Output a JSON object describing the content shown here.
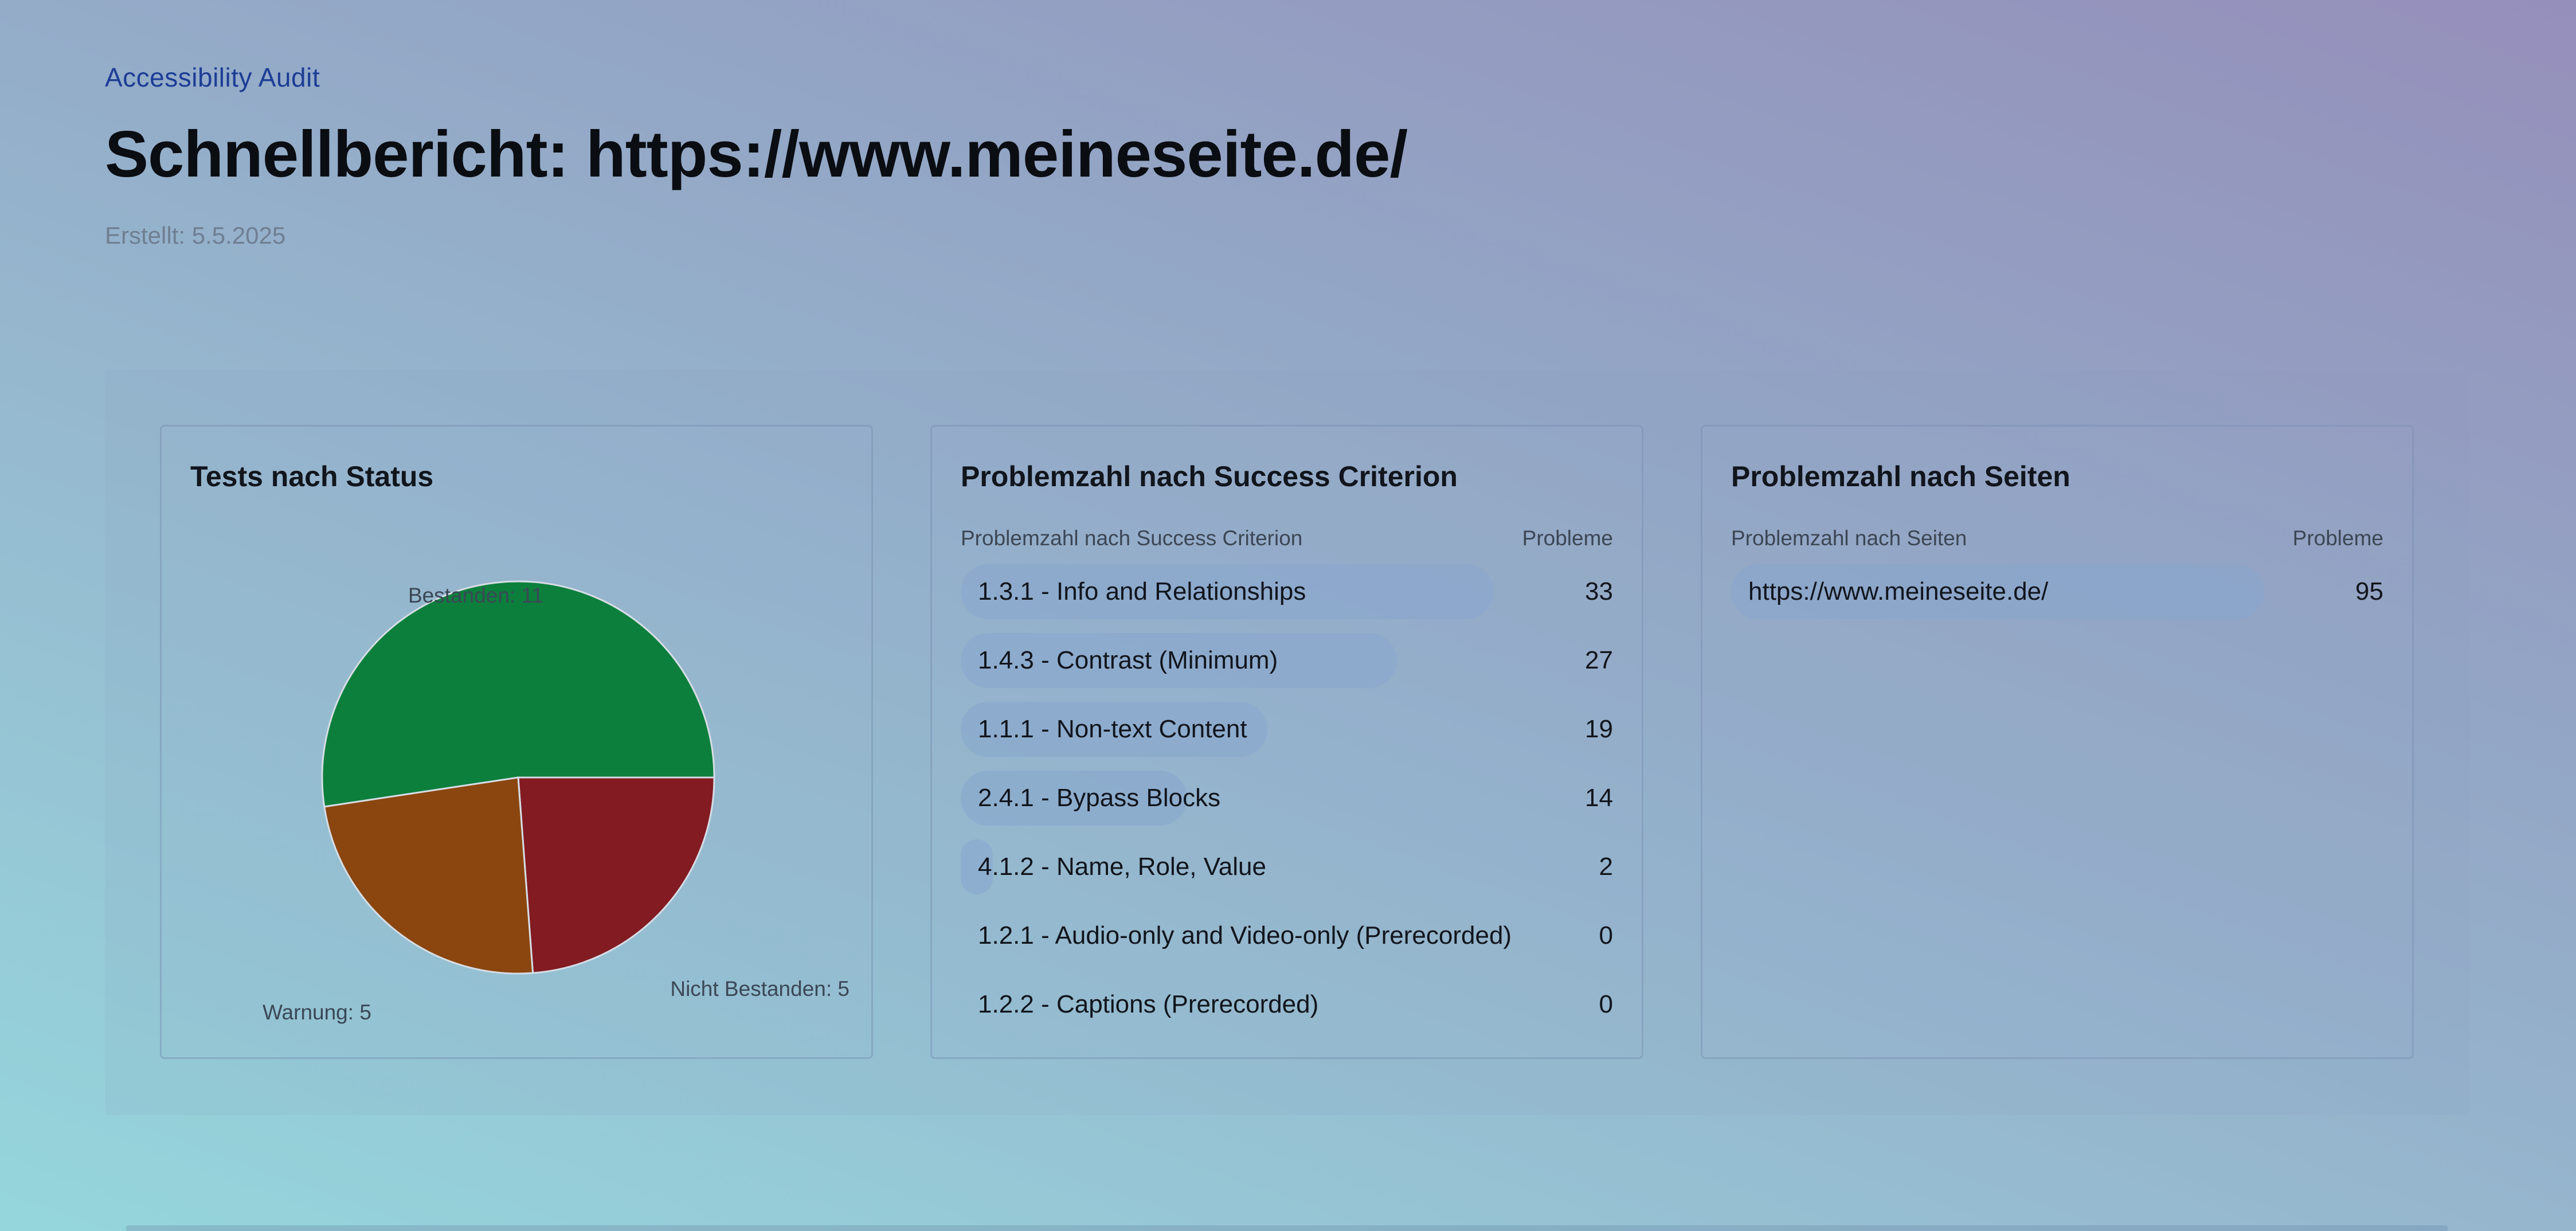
{
  "header": {
    "eyebrow": "Accessibility Audit",
    "title": "Schnellbericht: https://www.meineseite.de/",
    "created": "Erstellt: 5.5.2025"
  },
  "status_card": {
    "title": "Tests nach Status"
  },
  "chart_data": {
    "type": "pie",
    "slices": [
      {
        "label": "Bestanden: 11",
        "name": "Bestanden",
        "value": 11,
        "color": "#0c7f3c"
      },
      {
        "label": "Nicht Bestanden: 5",
        "name": "Nicht Bestanden",
        "value": 5,
        "color": "#831b22"
      },
      {
        "label": "Warnung: 5",
        "name": "Warnung",
        "value": 5,
        "color": "#8a460e"
      }
    ]
  },
  "criteria_card": {
    "title": "Problemzahl nach Success Criterion",
    "col_label": "Problemzahl nach Success Criterion",
    "col_value": "Probleme",
    "max": 33,
    "rows": [
      {
        "label": "1.3.1 - Info and Relationships",
        "value": 33
      },
      {
        "label": "1.4.3 - Contrast (Minimum)",
        "value": 27
      },
      {
        "label": "1.1.1 - Non-text Content",
        "value": 19
      },
      {
        "label": "2.4.1 - Bypass Blocks",
        "value": 14
      },
      {
        "label": "4.1.2 - Name, Role, Value",
        "value": 2
      },
      {
        "label": "1.2.1 - Audio-only and Video-only (Prerecorded)",
        "value": 0
      },
      {
        "label": "1.2.2 - Captions (Prerecorded)",
        "value": 0
      }
    ]
  },
  "pages_card": {
    "title": "Problemzahl nach Seiten",
    "col_label": "Problemzahl nach Seiten",
    "col_value": "Probleme",
    "max": 95,
    "rows": [
      {
        "label": "https://www.meineseite.de/",
        "value": 95
      }
    ]
  }
}
